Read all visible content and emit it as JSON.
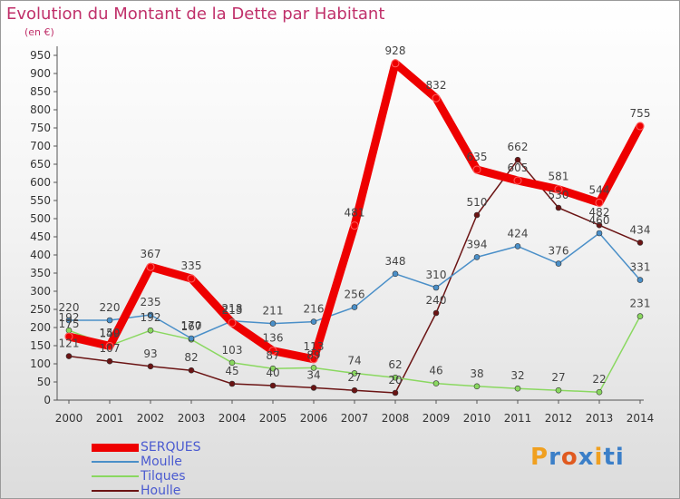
{
  "header": {
    "title": "Evolution du Montant de la Dette par Habitant",
    "unit": "(en €)"
  },
  "brand": {
    "letters": [
      "P",
      "r",
      "o",
      "x",
      "i",
      "t",
      "i"
    ],
    "colors": [
      "#f0a020",
      "#3b7fc8",
      "#e05a20",
      "#3b7fc8",
      "#f0a020",
      "#3b7fc8",
      "#3b7fc8"
    ]
  },
  "chart_data": {
    "type": "line",
    "x": [
      "2000",
      "2001",
      "2002",
      "2003",
      "2004",
      "2005",
      "2006",
      "2007",
      "2008",
      "2009",
      "2010",
      "2011",
      "2012",
      "2013",
      "2014"
    ],
    "ylim": [
      0,
      950
    ],
    "yticks": [
      0,
      50,
      100,
      150,
      200,
      250,
      300,
      350,
      400,
      450,
      500,
      550,
      600,
      650,
      700,
      750,
      800,
      850,
      900,
      950
    ],
    "grid": false,
    "legend_position": "bottom-left",
    "series": [
      {
        "name": "Houlle",
        "color": "#6b1414",
        "values": [
          121,
          107,
          93,
          82,
          45,
          40,
          34,
          27,
          20,
          240,
          510,
          662,
          530,
          482,
          434
        ]
      },
      {
        "name": "Tilques",
        "color": "#8ad860",
        "values": [
          192,
          150,
          192,
          167,
          103,
          87,
          89,
          74,
          62,
          46,
          38,
          32,
          27,
          22,
          231
        ]
      },
      {
        "name": "Moulle",
        "color": "#4a8fc8",
        "values": [
          220,
          220,
          235,
          170,
          218,
          211,
          216,
          256,
          348,
          310,
          394,
          424,
          376,
          460,
          331
        ]
      },
      {
        "name": "SERQUES",
        "color": "#ee0000",
        "values": [
          175,
          149,
          367,
          335,
          213,
          136,
          113,
          481,
          928,
          832,
          635,
          605,
          581,
          544,
          755
        ]
      }
    ],
    "data_labels": [
      [
        "121",
        "107",
        "93",
        "82",
        "45",
        "40",
        "34",
        "27",
        "20",
        "240",
        "510",
        "662",
        "530",
        "482",
        "434"
      ],
      [
        "192",
        "150",
        "192",
        "167",
        "103",
        "87",
        "89",
        "74",
        "62",
        "46",
        "38",
        "32",
        "27",
        "22",
        "231"
      ],
      [
        "220",
        "220",
        "235",
        "170",
        "218",
        "211",
        "216",
        "256",
        "348",
        "310",
        "394",
        "424",
        "376",
        "460",
        "331"
      ],
      [
        "175",
        "149",
        "367",
        "335",
        "213",
        "136",
        "113",
        "481",
        "928",
        "832",
        "635",
        "605",
        "581",
        "544",
        "755"
      ]
    ],
    "legend_order": [
      "SERQUES",
      "Moulle",
      "Tilques",
      "Houlle"
    ]
  }
}
